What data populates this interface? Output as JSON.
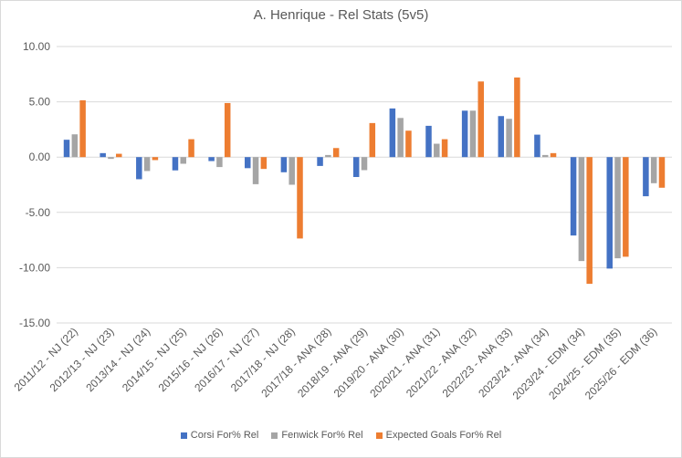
{
  "chart_data": {
    "type": "bar",
    "title": "A. Henrique - Rel Stats (5v5)",
    "xlabel": "",
    "ylabel": "",
    "ylim": [
      -15,
      10
    ],
    "yticks": [
      "10.00",
      "5.00",
      "0.00",
      "-5.00",
      "-10.00",
      "-15.00"
    ],
    "ytick_values": [
      10,
      5,
      0,
      -5,
      -10,
      -15
    ],
    "grid": true,
    "legend_position": "bottom",
    "categories": [
      "2011/12 - NJ (22)",
      "2012/13 - NJ (23)",
      "2013/14 - NJ (24)",
      "2014/15 - NJ (25)",
      "2015/16 - NJ (26)",
      "2016/17 - NJ (27)",
      "2017/18 - NJ (28)",
      "2017/18 - ANA (28)",
      "2018/19 - ANA (29)",
      "2019/20 - ANA (30)",
      "2020/21 - ANA (31)",
      "2021/22 - ANA (32)",
      "2022/23 - ANA (33)",
      "2023/24 - ANA (34)",
      "2023/24 - EDM (34)",
      "2024/25 - EDM (35)",
      "2025/26 - EDM (36)"
    ],
    "series": [
      {
        "name": "Corsi For% Rel",
        "color": "#4472c4",
        "values": [
          1.57,
          0.36,
          -2.0,
          -1.2,
          -0.36,
          -1.0,
          -1.37,
          -0.8,
          -1.8,
          4.4,
          2.83,
          4.2,
          3.71,
          2.03,
          -7.09,
          -10.08,
          -3.54
        ]
      },
      {
        "name": "Fenwick For% Rel",
        "color": "#a5a5a5",
        "values": [
          2.06,
          -0.16,
          -1.26,
          -0.6,
          -0.9,
          -2.45,
          -2.5,
          0.19,
          -1.18,
          3.54,
          1.21,
          4.2,
          3.46,
          0.19,
          -9.4,
          -9.15,
          -2.36
        ]
      },
      {
        "name": "Expected Goals For% Rel",
        "color": "#ed7d31",
        "values": [
          5.14,
          0.3,
          -0.27,
          1.62,
          4.89,
          -1.07,
          -7.36,
          0.82,
          3.08,
          2.39,
          1.62,
          6.84,
          7.2,
          0.36,
          -11.46,
          -9.01,
          -2.77
        ]
      }
    ]
  }
}
